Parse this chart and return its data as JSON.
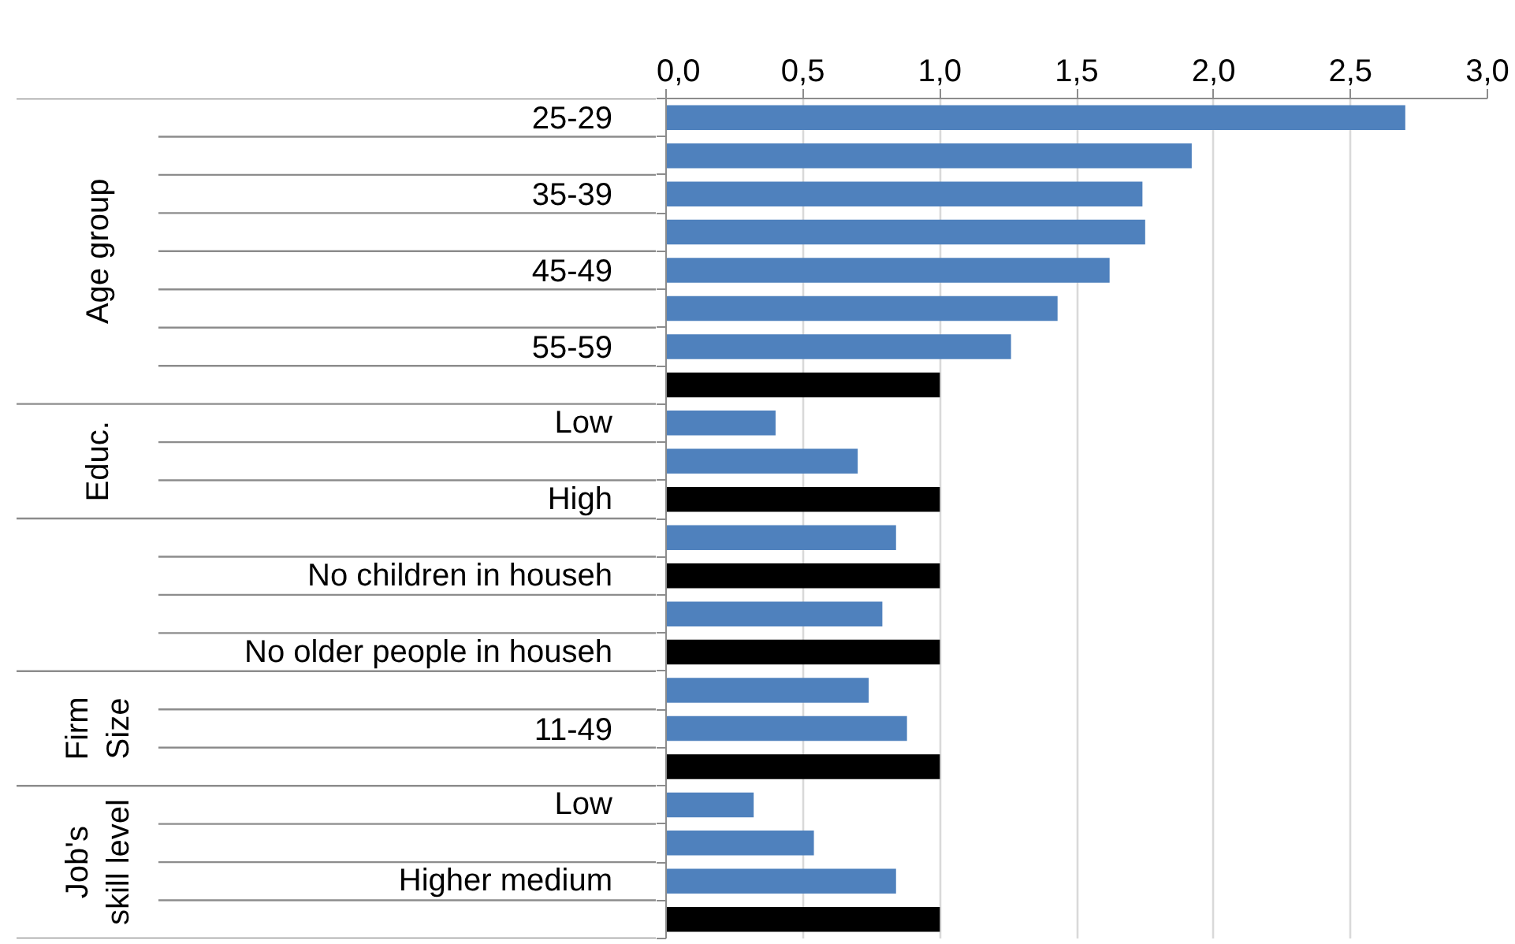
{
  "chart_data": {
    "type": "bar",
    "orientation": "horizontal",
    "categories": [
      "25-29",
      null,
      "35-39",
      null,
      "45-49",
      null,
      "55-59",
      null,
      "Low",
      null,
      "High",
      null,
      "No children in househ",
      null,
      "No older people in househ",
      null,
      "11-49",
      null,
      "Low",
      null,
      "Higher medium",
      null
    ],
    "values": [
      2.7,
      1.92,
      1.74,
      1.75,
      1.62,
      1.43,
      1.26,
      1.0,
      0.4,
      0.7,
      1.0,
      0.84,
      1.0,
      0.79,
      1.0,
      0.74,
      0.88,
      1.0,
      0.32,
      0.54,
      0.84,
      1.0
    ],
    "colors": [
      "#4f81bd",
      "#4f81bd",
      "#4f81bd",
      "#4f81bd",
      "#4f81bd",
      "#4f81bd",
      "#4f81bd",
      "#000000",
      "#4f81bd",
      "#4f81bd",
      "#000000",
      "#4f81bd",
      "#000000",
      "#4f81bd",
      "#000000",
      "#4f81bd",
      "#4f81bd",
      "#000000",
      "#4f81bd",
      "#4f81bd",
      "#4f81bd",
      "#000000"
    ],
    "xlim": [
      0,
      3
    ],
    "xticks": [
      {
        "value": 0,
        "label": "0,0"
      },
      {
        "value": 0.5,
        "label": "0,5"
      },
      {
        "value": 1,
        "label": "1,0"
      },
      {
        "value": 1.5,
        "label": "1,5"
      },
      {
        "value": 2,
        "label": "2,0"
      },
      {
        "value": 2.5,
        "label": "2,5"
      },
      {
        "value": 3,
        "label": "3,0"
      }
    ],
    "grid": "x",
    "annotations": [
      "Age group",
      "Educ.",
      "Firm Size",
      "Job's skill level"
    ]
  }
}
